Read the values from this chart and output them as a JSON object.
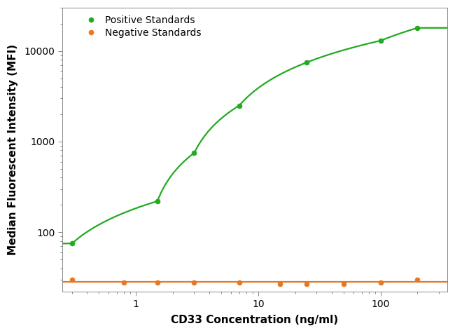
{
  "positive_x": [
    0.3,
    1.5,
    3.0,
    7.0,
    25.0,
    100.0,
    200.0
  ],
  "positive_y": [
    75,
    220,
    750,
    2500,
    7500,
    13000,
    18000
  ],
  "negative_x": [
    0.3,
    0.8,
    1.5,
    3.0,
    7.0,
    15.0,
    25.0,
    50.0,
    100.0,
    200.0
  ],
  "negative_y": [
    30,
    28,
    28,
    28,
    28,
    27,
    27,
    27,
    28,
    30
  ],
  "positive_color": "#22aa22",
  "negative_color": "#e87722",
  "positive_label": "Positive Standards",
  "negative_label": "Negative Standards",
  "xlabel": "CD33 Concentration (ng/ml)",
  "ylabel": "Median Fluorescent Intensity (MFI)",
  "xlim": [
    0.25,
    350
  ],
  "ylim": [
    22,
    30000
  ],
  "yticks": [
    100,
    1000,
    10000
  ],
  "xticks": [
    1,
    10,
    100
  ],
  "marker_size": 5,
  "line_width": 1.6,
  "background_color": "#ffffff",
  "title_fontsize": 11,
  "label_fontsize": 11,
  "tick_fontsize": 10,
  "legend_fontsize": 10
}
